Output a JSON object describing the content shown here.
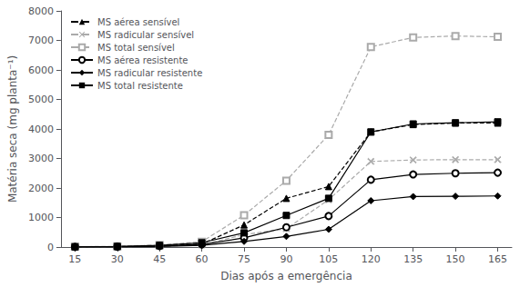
{
  "chart_data": {
    "type": "line",
    "xlabel": "Dias após a emergência",
    "ylabel": "Matéria seca (mg planta⁻¹)",
    "x": [
      15,
      30,
      45,
      60,
      75,
      90,
      105,
      120,
      135,
      150,
      165
    ],
    "xlim": [
      10,
      170
    ],
    "xticks": [
      15,
      30,
      45,
      60,
      75,
      90,
      105,
      120,
      135,
      150,
      165
    ],
    "ylim": [
      0,
      8000
    ],
    "yticks": [
      0,
      1000,
      2000,
      3000,
      4000,
      5000,
      6000,
      7000,
      8000
    ],
    "grid": false,
    "legend": "upper left",
    "series": [
      {
        "name": "MS aérea sensível",
        "color": "#000000",
        "line_style": "dashed",
        "marker": "triangle",
        "values": [
          8,
          15,
          40,
          100,
          750,
          1650,
          2050,
          3900,
          4150,
          4200,
          4200
        ]
      },
      {
        "name": "MS radicular sensível",
        "color": "#aaaaaa",
        "line_style": "dashed",
        "marker": "x",
        "values": [
          4,
          8,
          25,
          70,
          420,
          620,
          1600,
          2900,
          2950,
          2960,
          2960
        ]
      },
      {
        "name": "MS total sensível",
        "color": "#aaaaaa",
        "line_style": "dashed",
        "marker": "square-open",
        "values": [
          12,
          25,
          70,
          180,
          1080,
          2250,
          3800,
          6780,
          7100,
          7150,
          7120
        ]
      },
      {
        "name": "MS aérea resistente",
        "color": "#000000",
        "line_style": "solid",
        "marker": "circle-open",
        "values": [
          4,
          12,
          35,
          90,
          310,
          670,
          1050,
          2280,
          2460,
          2500,
          2520
        ]
      },
      {
        "name": "MS radicular resistente",
        "color": "#000000",
        "line_style": "solid",
        "marker": "diamond",
        "values": [
          2,
          6,
          18,
          55,
          190,
          360,
          600,
          1570,
          1710,
          1720,
          1730
        ]
      },
      {
        "name": "MS total resistente",
        "color": "#000000",
        "line_style": "solid",
        "marker": "square",
        "values": [
          6,
          20,
          55,
          145,
          480,
          1070,
          1650,
          3900,
          4170,
          4210,
          4240
        ]
      }
    ]
  }
}
